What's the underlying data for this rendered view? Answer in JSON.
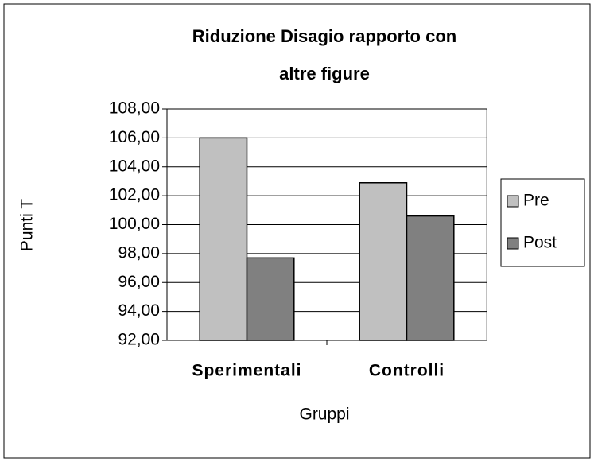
{
  "chart_data": {
    "type": "bar",
    "title": "Riduzione Disagio rapporto con altre figure",
    "y_label": "Punti T",
    "x_label": "Gruppi",
    "categories": [
      "Sperimentali",
      "Controlli"
    ],
    "series": [
      {
        "name": "Pre",
        "color": "#c0c0c0",
        "values": [
          106.0,
          102.9
        ]
      },
      {
        "name": "Post",
        "color": "#808080",
        "values": [
          97.7,
          100.6
        ]
      }
    ],
    "ylim": [
      92,
      108
    ],
    "yticks": [
      {
        "value": 92,
        "label": "92,00"
      },
      {
        "value": 94,
        "label": "94,00"
      },
      {
        "value": 96,
        "label": "96,00"
      },
      {
        "value": 98,
        "label": "98,00"
      },
      {
        "value": 100,
        "label": "100,00"
      },
      {
        "value": 102,
        "label": "102,00"
      },
      {
        "value": 104,
        "label": "104,00"
      },
      {
        "value": 106,
        "label": "106,00"
      },
      {
        "value": 108,
        "label": "108,00"
      }
    ],
    "grid": true,
    "legend": "right"
  }
}
